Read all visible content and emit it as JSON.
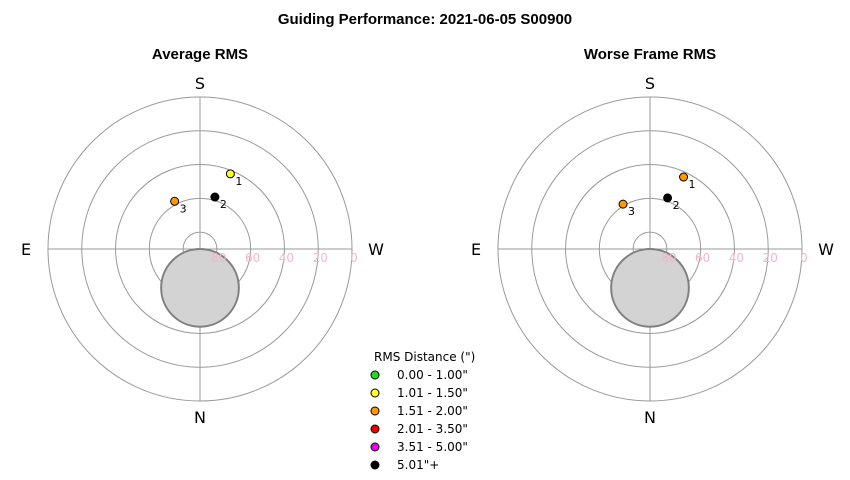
{
  "chart_data": {
    "type": "scatter",
    "title": "Guiding Performance: 2021-06-05 S00900",
    "coordinate_system": "polar (azimuth / altitude)",
    "radial_axis": {
      "quantity": "altitude",
      "ticks": [
        "80",
        "60",
        "40",
        "20",
        "0"
      ],
      "tick_values": [
        80,
        60,
        40,
        20,
        0
      ],
      "range": [
        90,
        0
      ]
    },
    "colors": {
      "grid": "#9a9a9a",
      "altitude_ticks": "#f4b6c6",
      "shade_fill": "#d3d3d3",
      "shade_stroke": "#808080"
    },
    "obstruction_region": {
      "direction": "N",
      "center_altitude": 67,
      "radius_deg": 23
    },
    "legend": {
      "title": "RMS Distance (\")",
      "placement": "bottom-center",
      "entries": [
        {
          "label": "0.00 - 1.00\"",
          "color": "#22dd22"
        },
        {
          "label": "1.01 - 1.50\"",
          "color": "#ffff22"
        },
        {
          "label": "1.51 - 2.00\"",
          "color": "#ff9900"
        },
        {
          "label": "2.01 - 3.50\"",
          "color": "#ee0000"
        },
        {
          "label": "3.51 - 5.00\"",
          "color": "#ee00ee"
        },
        {
          "label": "5.01\"+",
          "color": "#000000"
        }
      ]
    },
    "panels": [
      {
        "title": "Average RMS",
        "directions": {
          "top": "S",
          "bottom": "N",
          "left": "E",
          "right": "W"
        },
        "points": [
          {
            "label": "1",
            "azimuth": 202,
            "altitude": 42,
            "color": "#ffff22"
          },
          {
            "label": "2",
            "azimuth": 196,
            "altitude": 58,
            "color": "#000000"
          },
          {
            "label": "3",
            "azimuth": 152,
            "altitude": 58,
            "color": "#ff9900"
          }
        ]
      },
      {
        "title": "Worse Frame RMS",
        "directions": {
          "top": "S",
          "bottom": "N",
          "left": "E",
          "right": "W"
        },
        "points": [
          {
            "label": "1",
            "azimuth": 205,
            "altitude": 43,
            "color": "#ff9900"
          },
          {
            "label": "2",
            "azimuth": 199,
            "altitude": 58,
            "color": "#000000"
          },
          {
            "label": "3",
            "azimuth": 149,
            "altitude": 59,
            "color": "#ff9900"
          }
        ]
      }
    ]
  }
}
